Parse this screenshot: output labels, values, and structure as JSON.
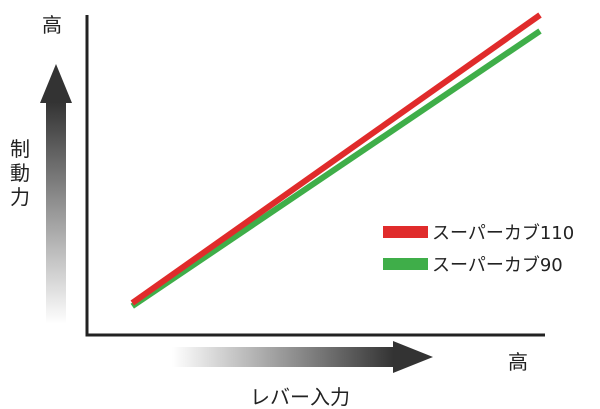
{
  "chart_data": {
    "type": "line",
    "xlabel": "レバー入力",
    "ylabel": "制動力",
    "x_high_label": "高",
    "y_high_label": "高",
    "xlim": [
      0,
      100
    ],
    "ylim": [
      0,
      100
    ],
    "grid": false,
    "legend_position": "right",
    "series": [
      {
        "name": "スーパーカブ110",
        "color": "#e02b2b",
        "x": [
          10,
          100
        ],
        "y": [
          10,
          100
        ]
      },
      {
        "name": "スーパーカブ90",
        "color": "#3fae49",
        "x": [
          10,
          100
        ],
        "y": [
          9,
          95
        ]
      }
    ]
  }
}
